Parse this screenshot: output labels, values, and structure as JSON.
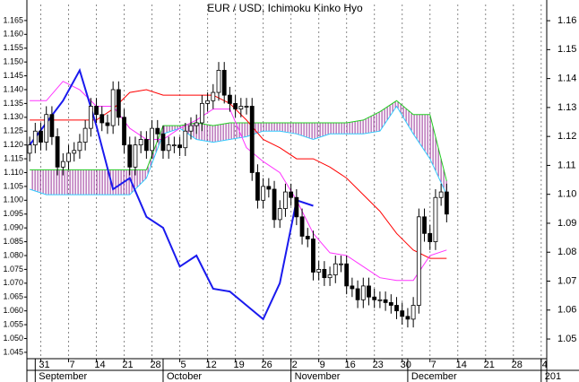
{
  "chart_data": {
    "type": "candlestick",
    "title": "EUR / USD, Ichimoku Kinko Hyo",
    "xlim": [
      -0.5,
      93
    ],
    "xticks": [
      {
        "value": 2,
        "label": "31"
      },
      {
        "value": 7,
        "label": "7"
      },
      {
        "value": 12,
        "label": "14"
      },
      {
        "value": 17,
        "label": "21"
      },
      {
        "value": 22,
        "label": "28"
      },
      {
        "value": 27,
        "label": "5"
      },
      {
        "value": 32,
        "label": "12"
      },
      {
        "value": 37,
        "label": "19"
      },
      {
        "value": 42,
        "label": "26"
      },
      {
        "value": 47,
        "label": "2"
      },
      {
        "value": 52,
        "label": "9"
      },
      {
        "value": 57,
        "label": "16"
      },
      {
        "value": 62,
        "label": "23"
      },
      {
        "value": 67,
        "label": "30"
      },
      {
        "value": 72,
        "label": "7"
      },
      {
        "value": 77,
        "label": "14"
      },
      {
        "value": 82,
        "label": "21"
      },
      {
        "value": 87,
        "label": "28"
      },
      {
        "value": 92,
        "label": "4"
      }
    ],
    "month_labels": [
      {
        "value": 1,
        "label": "September"
      },
      {
        "value": 24,
        "label": "October"
      },
      {
        "value": 47,
        "label": "November"
      },
      {
        "value": 68,
        "label": "December"
      },
      {
        "value": 92,
        "label": "201"
      }
    ],
    "ylim": [
      1.0427,
      1.1708
    ],
    "yticks": [
      1.045,
      {
        "value": 1.05,
        "label": "1.050"
      },
      1.055,
      {
        "value": 1.06,
        "label": "1.060"
      },
      1.065,
      {
        "value": 1.07,
        "label": "1.070"
      },
      1.075,
      {
        "value": 1.08,
        "label": "1.080"
      },
      1.085,
      {
        "value": 1.09,
        "label": "1.090"
      },
      1.095,
      {
        "value": 1.1,
        "label": "1.100"
      },
      1.105,
      {
        "value": 1.11,
        "label": "1.110"
      },
      1.115,
      {
        "value": 1.12,
        "label": "1.120"
      },
      1.125,
      {
        "value": 1.13,
        "label": "1.130"
      },
      1.135,
      {
        "value": 1.14,
        "label": "1.140"
      },
      1.145,
      {
        "value": 1.15,
        "label": "1.150"
      },
      1.155,
      {
        "value": 1.16,
        "label": "1.160"
      },
      1.165
    ],
    "y2lim": [
      1.0432,
      1.1656
    ],
    "y2ticks": [
      1.05,
      1.06,
      1.07,
      1.08,
      1.09,
      {
        "value": 1.1,
        "label": "1.10"
      },
      1.11,
      1.12,
      1.13,
      1.14,
      1.15,
      1.16
    ],
    "grid": "x",
    "candles": {
      "up_color": "#ffffff",
      "down_color": "#000000",
      "open": [
        1.117,
        1.12,
        1.125,
        1.121,
        1.131,
        1.123,
        1.112,
        1.114,
        1.117,
        1.118,
        1.121,
        1.126,
        1.134,
        1.131,
        1.128,
        1.127,
        1.14,
        1.13,
        1.12,
        1.112,
        1.12,
        1.122,
        1.118,
        1.126,
        1.124,
        1.118,
        1.12,
        1.12,
        1.119,
        1.125,
        1.127,
        1.128,
        1.135,
        1.136,
        1.139,
        1.147,
        1.138,
        1.135,
        1.133,
        1.134,
        1.134,
        1.11,
        1.1,
        1.105,
        1.104,
        1.093,
        1.097,
        1.103,
        1.101,
        1.094,
        1.087,
        1.086,
        1.074,
        1.075,
        1.072,
        1.073,
        1.077,
        1.077,
        1.069,
        1.068,
        1.064,
        1.069,
        1.065,
        1.064,
        1.064,
        1.063,
        1.062,
        1.06,
        1.058,
        1.057,
        1.062,
        1.094,
        1.088,
        1.085,
        1.101,
        1.103
      ],
      "high": [
        1.123,
        1.128,
        1.128,
        1.134,
        1.134,
        1.126,
        1.117,
        1.12,
        1.121,
        1.124,
        1.129,
        1.137,
        1.137,
        1.134,
        1.131,
        1.143,
        1.143,
        1.133,
        1.123,
        1.123,
        1.125,
        1.125,
        1.129,
        1.129,
        1.127,
        1.123,
        1.123,
        1.123,
        1.128,
        1.13,
        1.131,
        1.138,
        1.139,
        1.142,
        1.15,
        1.15,
        1.141,
        1.138,
        1.137,
        1.137,
        1.137,
        1.113,
        1.108,
        1.108,
        1.107,
        1.1,
        1.106,
        1.106,
        1.104,
        1.097,
        1.09,
        1.089,
        1.078,
        1.078,
        1.076,
        1.08,
        1.08,
        1.08,
        1.072,
        1.071,
        1.072,
        1.072,
        1.068,
        1.067,
        1.067,
        1.066,
        1.065,
        1.063,
        1.061,
        1.065,
        1.097,
        1.097,
        1.091,
        1.104,
        1.106,
        1.106
      ],
      "low": [
        1.114,
        1.117,
        1.118,
        1.118,
        1.12,
        1.109,
        1.109,
        1.111,
        1.114,
        1.115,
        1.118,
        1.123,
        1.128,
        1.125,
        1.124,
        1.124,
        1.127,
        1.117,
        1.109,
        1.109,
        1.117,
        1.115,
        1.115,
        1.121,
        1.115,
        1.115,
        1.117,
        1.116,
        1.116,
        1.122,
        1.124,
        1.125,
        1.132,
        1.133,
        1.136,
        1.135,
        1.132,
        1.13,
        1.13,
        1.131,
        1.107,
        1.097,
        1.097,
        1.101,
        1.09,
        1.09,
        1.094,
        1.098,
        1.091,
        1.084,
        1.083,
        1.071,
        1.071,
        1.069,
        1.069,
        1.07,
        1.074,
        1.066,
        1.065,
        1.061,
        1.061,
        1.062,
        1.061,
        1.061,
        1.06,
        1.059,
        1.057,
        1.055,
        1.054,
        1.054,
        1.059,
        1.085,
        1.082,
        1.082,
        1.098,
        1.092
      ],
      "close": [
        1.12,
        1.125,
        1.121,
        1.131,
        1.123,
        1.112,
        1.114,
        1.117,
        1.118,
        1.121,
        1.126,
        1.134,
        1.131,
        1.128,
        1.127,
        1.14,
        1.13,
        1.12,
        1.112,
        1.12,
        1.122,
        1.118,
        1.126,
        1.124,
        1.118,
        1.12,
        1.12,
        1.119,
        1.125,
        1.127,
        1.128,
        1.135,
        1.136,
        1.139,
        1.147,
        1.138,
        1.135,
        1.133,
        1.134,
        1.134,
        1.11,
        1.1,
        1.105,
        1.104,
        1.093,
        1.097,
        1.103,
        1.101,
        1.094,
        1.087,
        1.086,
        1.074,
        1.075,
        1.072,
        1.073,
        1.077,
        1.077,
        1.069,
        1.068,
        1.064,
        1.069,
        1.065,
        1.064,
        1.064,
        1.063,
        1.062,
        1.06,
        1.058,
        1.057,
        1.062,
        1.094,
        1.088,
        1.085,
        1.101,
        1.103,
        1.095
      ]
    },
    "cloud": {
      "color": "#993399"
    },
    "series": [
      {
        "color": "#33ccff",
        "x": [
          0,
          3,
          6,
          9,
          12,
          15,
          18,
          21,
          24,
          27,
          30,
          33,
          36,
          39,
          42,
          45,
          48,
          51,
          54,
          57,
          60,
          63,
          66,
          69,
          72,
          75
        ],
        "values": [
          1.104,
          1.102,
          1.102,
          1.102,
          1.102,
          1.102,
          1.102,
          1.108,
          1.124,
          1.126,
          1.122,
          1.121,
          1.122,
          1.123,
          1.125,
          1.125,
          1.124,
          1.122,
          1.124,
          1.124,
          1.124,
          1.125,
          1.134,
          1.124,
          1.115,
          1.102
        ]
      },
      {
        "color": "#22cc22",
        "x": [
          0,
          3,
          6,
          9,
          12,
          15,
          18,
          21,
          24,
          27,
          30,
          33,
          36,
          39,
          42,
          45,
          48,
          51,
          54,
          57,
          60,
          63,
          66,
          69,
          72,
          75
        ],
        "values": [
          1.111,
          1.111,
          1.111,
          1.111,
          1.111,
          1.111,
          1.111,
          1.111,
          1.127,
          1.127,
          1.128,
          1.127,
          1.128,
          1.128,
          1.128,
          1.128,
          1.128,
          1.128,
          1.128,
          1.128,
          1.129,
          1.132,
          1.136,
          1.131,
          1.131,
          1.107
        ]
      },
      {
        "color": "#ff0000",
        "x": [
          0,
          3,
          6,
          9,
          12,
          15,
          18,
          21,
          24,
          27,
          30,
          33,
          36,
          39,
          42,
          45,
          48,
          51,
          54,
          57,
          60,
          63,
          66,
          69,
          72,
          75
        ],
        "values": [
          1.129,
          1.129,
          1.129,
          1.129,
          1.129,
          1.133,
          1.139,
          1.14,
          1.138,
          1.138,
          1.138,
          1.138,
          1.135,
          1.129,
          1.122,
          1.119,
          1.115,
          1.115,
          1.112,
          1.108,
          1.102,
          1.096,
          1.088,
          1.082,
          1.079,
          1.079
        ]
      },
      {
        "color": "#ff33ff",
        "x": [
          0,
          3,
          6,
          9,
          12,
          15,
          18,
          21,
          24,
          27,
          30,
          33,
          36,
          39,
          42,
          45,
          48,
          51,
          54,
          57,
          60,
          63,
          66,
          69,
          72,
          75
        ],
        "values": [
          1.136,
          1.136,
          1.143,
          1.14,
          1.134,
          1.134,
          1.126,
          1.122,
          1.122,
          1.126,
          1.129,
          1.133,
          1.133,
          1.119,
          1.114,
          1.11,
          1.1,
          1.088,
          1.081,
          1.08,
          1.076,
          1.072,
          1.071,
          1.071,
          1.08,
          1.082
        ]
      },
      {
        "color": "#1a1aee",
        "x": [
          0,
          3,
          6,
          9,
          12,
          15,
          18,
          21,
          24,
          27,
          30,
          33,
          36,
          39,
          42,
          45,
          48,
          51
        ],
        "values": [
          1.12,
          1.128,
          1.136,
          1.147,
          1.127,
          1.104,
          1.108,
          1.094,
          1.09,
          1.076,
          1.08,
          1.068,
          1.067,
          1.062,
          1.057,
          1.07,
          1.1,
          1.098
        ]
      }
    ]
  }
}
